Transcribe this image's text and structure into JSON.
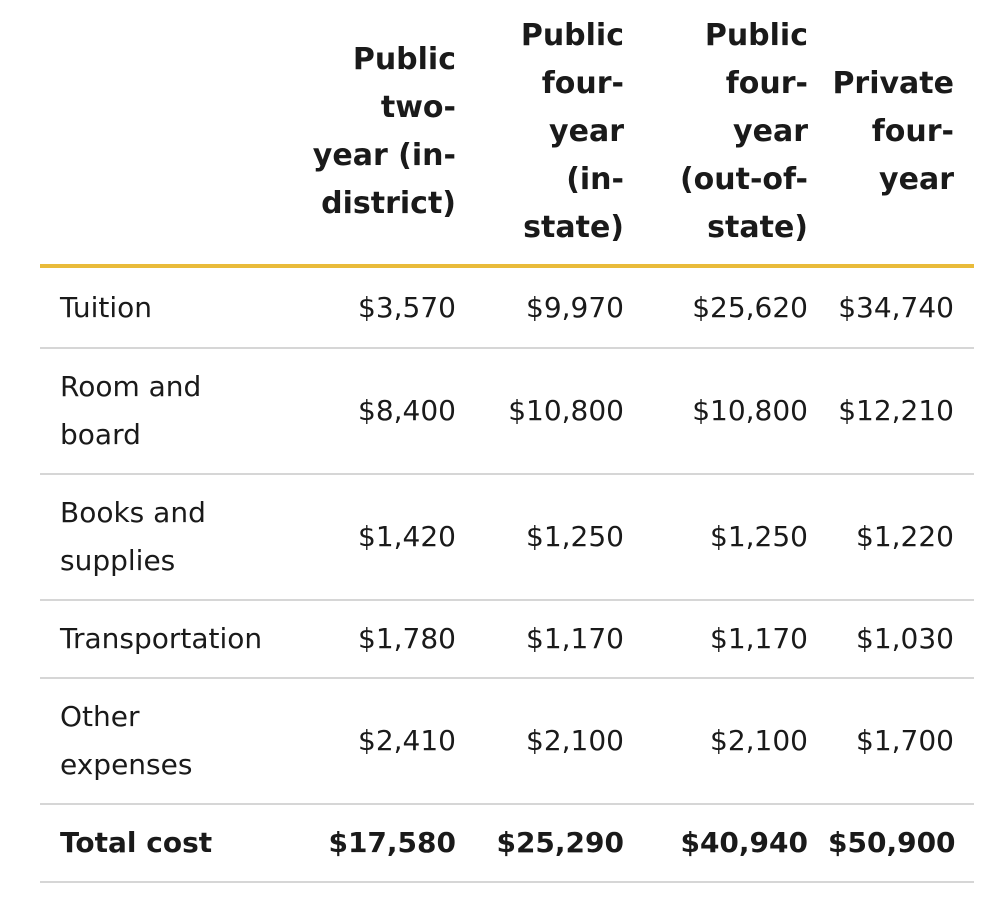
{
  "table": {
    "headers": [
      "",
      [
        "Public",
        "two-",
        "year (in-",
        "district)"
      ],
      [
        "Public",
        "four-",
        "year",
        "(in-",
        "state)"
      ],
      [
        "Public",
        "four-",
        "year",
        "(out-of-",
        "state)"
      ],
      [
        "Private",
        "four-",
        "year"
      ]
    ],
    "rows": [
      {
        "label": [
          "Tuition"
        ],
        "values": [
          "$3,570",
          "$9,970",
          "$25,620",
          "$34,740"
        ]
      },
      {
        "label": [
          "Room and",
          "board"
        ],
        "values": [
          "$8,400",
          "$10,800",
          "$10,800",
          "$12,210"
        ]
      },
      {
        "label": [
          "Books and",
          "supplies"
        ],
        "values": [
          "$1,420",
          "$1,250",
          "$1,250",
          "$1,220"
        ]
      },
      {
        "label": [
          "Transportation"
        ],
        "values": [
          "$1,780",
          "$1,170",
          "$1,170",
          "$1,030"
        ]
      },
      {
        "label": [
          "Other",
          "expenses"
        ],
        "values": [
          "$2,410",
          "$2,100",
          "$2,100",
          "$1,700"
        ]
      }
    ],
    "total": {
      "label": "Total cost",
      "values": [
        "$17,580",
        "$25,290",
        "$40,940",
        "$50,900"
      ]
    }
  },
  "colors": {
    "header_rule": "#e9bb3a",
    "row_rule": "#d6d6d6",
    "text": "#1a1a1a"
  }
}
